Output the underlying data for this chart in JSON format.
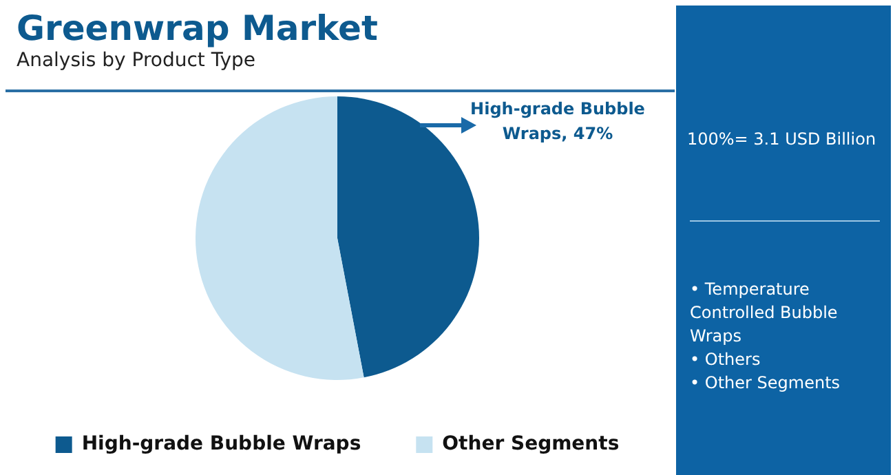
{
  "chart_data": {
    "type": "pie",
    "title": "Greenwrap Market",
    "subtitle": "Analysis by Product Type",
    "categories": [
      "High-grade Bubble Wraps",
      "Other Segments"
    ],
    "values": [
      47,
      53
    ],
    "colors": [
      "#0d5a8f",
      "#c6e2f1"
    ],
    "value_labels": [
      "High-grade Bubble Wraps, 47%",
      null
    ],
    "legend": "bottom",
    "annotations": [
      "100%= 3.1 USD Billion",
      "• Temperature Controlled Bubble Wraps",
      "• Others",
      "• Other Segments"
    ]
  }
}
